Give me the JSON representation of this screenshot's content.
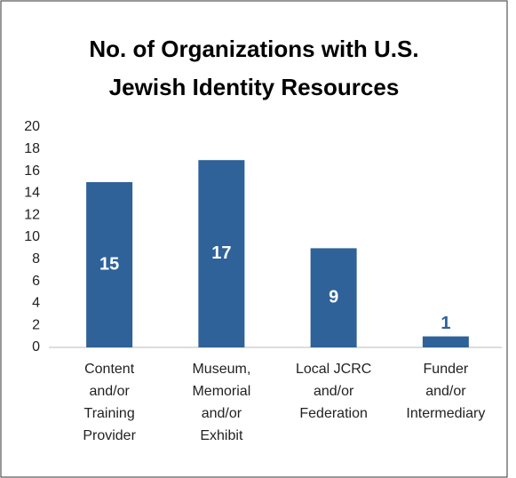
{
  "chart_data": {
    "type": "bar",
    "title": [
      "No. of Organizations with U.S.",
      "Jewish Identity Resources"
    ],
    "categories": [
      [
        "Content",
        "and/or",
        "Training",
        "Provider"
      ],
      [
        "Museum,",
        "Memorial",
        "and/or",
        "Exhibit"
      ],
      [
        "Local JCRC",
        "and/or",
        "Federation"
      ],
      [
        "Funder",
        "and/or",
        "Intermediary"
      ]
    ],
    "values": [
      15,
      17,
      9,
      1
    ],
    "color": "#2e6299",
    "ylim": [
      0,
      20
    ],
    "yticks": [
      0,
      2,
      4,
      6,
      8,
      10,
      12,
      14,
      16,
      18,
      20
    ],
    "grid": false
  }
}
